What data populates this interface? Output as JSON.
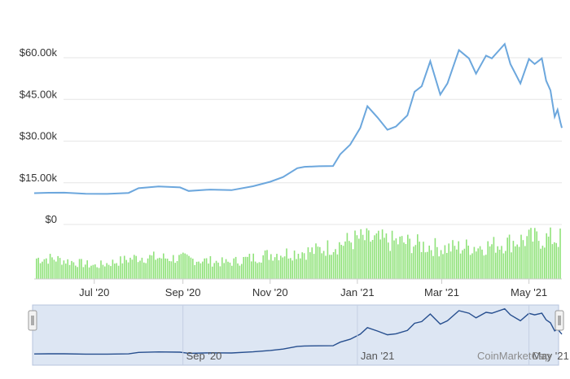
{
  "colors": {
    "price_line": "#6ca7dd",
    "volume_bar": "#90e27a",
    "grid": "#e6e6e6",
    "navigator_fill": "#dde6f3",
    "navigator_line": "#274f8f"
  },
  "watermark": "CoinMarketCap",
  "navigator": {
    "labels": [
      "Sep '20",
      "Jan '21",
      "May '21"
    ]
  },
  "chart_data": {
    "type": "line",
    "title": "",
    "y_ticks": [
      "$0",
      "$15.00k",
      "$30.00k",
      "$45.00k",
      "$60.00k"
    ],
    "y_tick_values": [
      0,
      15000,
      30000,
      45000,
      60000
    ],
    "ylim": [
      0,
      60000
    ],
    "x_ticks": [
      "Jul '20",
      "Sep '20",
      "Nov '20",
      "Jan '21",
      "Mar '21",
      "May '21"
    ],
    "x_tick_dates": [
      "2020-07-01",
      "2020-09-01",
      "2020-11-01",
      "2021-01-01",
      "2021-03-01",
      "2021-05-01"
    ],
    "x_range": [
      "2020-05-20",
      "2021-05-24"
    ],
    "grid": true,
    "series": [
      {
        "x": [
          "2020-05-20",
          "2020-05-30",
          "2020-06-10",
          "2020-06-25",
          "2020-07-10",
          "2020-07-25",
          "2020-08-01",
          "2020-08-15",
          "2020-08-30",
          "2020-09-05",
          "2020-09-20",
          "2020-10-05",
          "2020-10-20",
          "2020-11-01",
          "2020-11-10",
          "2020-11-20",
          "2020-11-25",
          "2020-12-05",
          "2020-12-15",
          "2020-12-20",
          "2020-12-27",
          "2021-01-03",
          "2021-01-08",
          "2021-01-15",
          "2021-01-22",
          "2021-01-28",
          "2021-02-05",
          "2021-02-10",
          "2021-02-15",
          "2021-02-21",
          "2021-02-28",
          "2021-03-05",
          "2021-03-13",
          "2021-03-20",
          "2021-03-25",
          "2021-04-01",
          "2021-04-05",
          "2021-04-14",
          "2021-04-18",
          "2021-04-25",
          "2021-05-01",
          "2021-05-05",
          "2021-05-10",
          "2021-05-13",
          "2021-05-16",
          "2021-05-19",
          "2021-05-21",
          "2021-05-23",
          "2021-05-24"
        ],
        "y": [
          9500,
          9650,
          9700,
          9300,
          9250,
          9600,
          11300,
          11900,
          11600,
          10300,
          10800,
          10600,
          12000,
          13600,
          15300,
          18500,
          19000,
          19200,
          19300,
          23500,
          27000,
          33000,
          40800,
          36800,
          32300,
          33500,
          37500,
          46000,
          48000,
          57000,
          45000,
          49000,
          61000,
          58000,
          52500,
          59000,
          58000,
          63200,
          56000,
          49000,
          57800,
          56000,
          58000,
          50000,
          46500,
          37000,
          39500,
          35000,
          33000
        ]
      }
    ],
    "volume_bars": [
      {
        "x": "2020-06-01",
        "v": 28
      },
      {
        "x": "2020-07-01",
        "v": 18
      },
      {
        "x": "2020-08-01",
        "v": 30
      },
      {
        "x": "2020-09-01",
        "v": 28
      },
      {
        "x": "2020-10-01",
        "v": 22
      },
      {
        "x": "2020-11-01",
        "v": 34
      },
      {
        "x": "2020-12-01",
        "v": 38
      },
      {
        "x": "2021-01-01",
        "v": 55
      },
      {
        "x": "2021-02-01",
        "v": 50
      },
      {
        "x": "2021-03-01",
        "v": 42
      },
      {
        "x": "2021-04-01",
        "v": 45
      },
      {
        "x": "2021-05-01",
        "v": 55
      }
    ]
  }
}
